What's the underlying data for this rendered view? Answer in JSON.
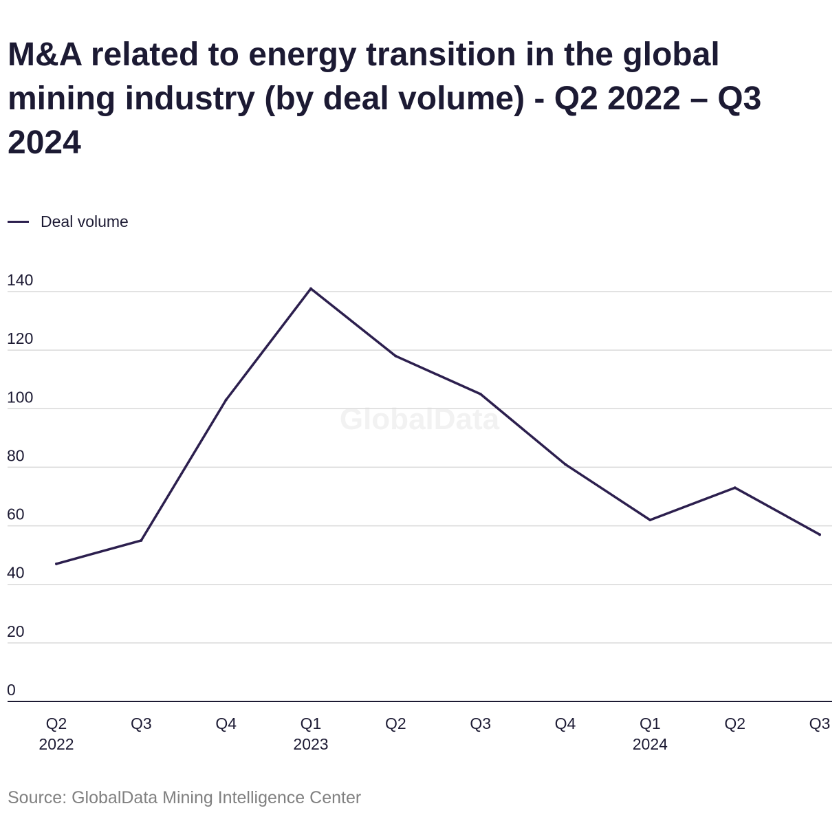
{
  "title": "M&A related to energy transition in the global mining industry (by deal volume) - Q2 2022 – Q3 2024",
  "source": "Source: GlobalData Mining Intelligence Center",
  "watermark": "GlobalData",
  "colors": {
    "line": "#2c1f4e",
    "grid": "#d9d9d9",
    "axis": "#1c1a33",
    "text": "#1c1a33",
    "source": "#808080",
    "watermark": "#f2f2f2"
  },
  "chart_data": {
    "type": "line",
    "title": "M&A related to energy transition in the global mining industry (by deal volume) - Q2 2022 – Q3 2024",
    "categories": [
      "Q2 2022",
      "Q3 2022",
      "Q4 2022",
      "Q1 2023",
      "Q2 2023",
      "Q3 2023",
      "Q4 2023",
      "Q1 2024",
      "Q2 2024",
      "Q3 2024"
    ],
    "x_tick_labels": [
      [
        "Q2",
        "2022"
      ],
      [
        "Q3"
      ],
      [
        "Q4"
      ],
      [
        "Q1",
        "2023"
      ],
      [
        "Q2"
      ],
      [
        "Q3"
      ],
      [
        "Q4"
      ],
      [
        "Q1",
        "2024"
      ],
      [
        "Q2"
      ],
      [
        "Q3"
      ]
    ],
    "series": [
      {
        "name": "Deal volume",
        "values": [
          47,
          55,
          103,
          141,
          118,
          105,
          81,
          62,
          73,
          57
        ]
      }
    ],
    "y_ticks": [
      0,
      20,
      40,
      60,
      80,
      100,
      120,
      140
    ],
    "ylim": [
      0,
      140
    ],
    "xlabel": "",
    "ylabel": "",
    "grid": true,
    "legend_position": "top-left"
  }
}
